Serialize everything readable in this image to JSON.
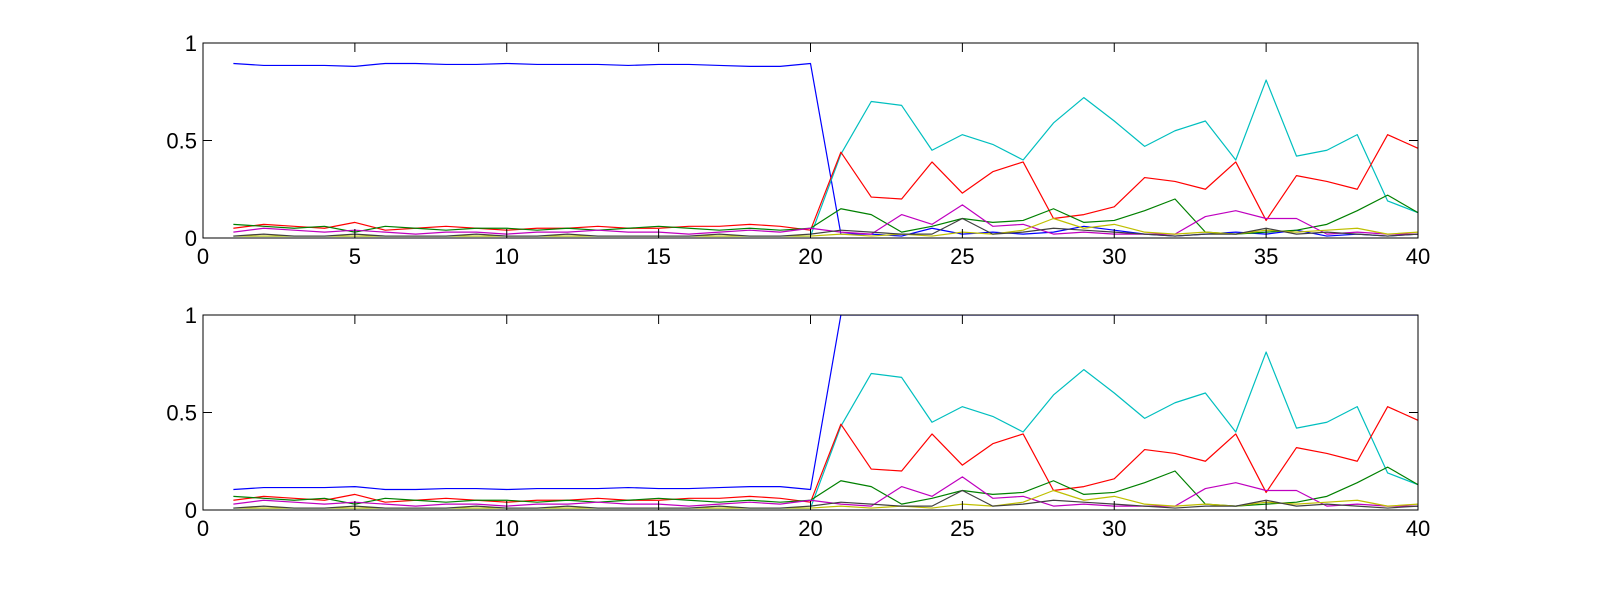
{
  "chart_data": [
    {
      "type": "line",
      "title": "",
      "xlabel": "",
      "ylabel": "",
      "xlim": [
        0,
        40
      ],
      "ylim": [
        0,
        1
      ],
      "xticks": [
        0,
        5,
        10,
        15,
        20,
        25,
        30,
        35,
        40
      ],
      "xtick_labels": [
        "0",
        "5",
        "10",
        "15",
        "20",
        "25",
        "30",
        "35",
        "40"
      ],
      "yticks": [
        0,
        0.5,
        1
      ],
      "ytick_labels": [
        "0",
        "0.5",
        "1"
      ],
      "grid": false,
      "legend": "none",
      "x": [
        1,
        2,
        3,
        4,
        5,
        6,
        7,
        8,
        9,
        10,
        11,
        12,
        13,
        14,
        15,
        16,
        17,
        18,
        19,
        20,
        21,
        22,
        23,
        24,
        25,
        26,
        27,
        28,
        29,
        30,
        31,
        32,
        33,
        34,
        35,
        36,
        37,
        38,
        39,
        40
      ],
      "series": [
        {
          "color": "#0000ff",
          "values": [
            0.895,
            0.885,
            0.885,
            0.885,
            0.88,
            0.895,
            0.895,
            0.89,
            0.89,
            0.895,
            0.89,
            0.89,
            0.89,
            0.885,
            0.89,
            0.89,
            0.885,
            0.88,
            0.88,
            0.895,
            0.02,
            0.02,
            0.01,
            0.05,
            0.02,
            0.03,
            0.02,
            0.03,
            0.06,
            0.04,
            0.02,
            0.01,
            0.02,
            0.03,
            0.02,
            0.04,
            0.01,
            0.02,
            0.01,
            0.02
          ]
        },
        {
          "color": "#00bfbf",
          "values": [
            0.01,
            0.01,
            0.01,
            0.01,
            0.01,
            0.01,
            0.01,
            0.01,
            0.01,
            0.01,
            0.01,
            0.01,
            0.01,
            0.01,
            0.01,
            0.01,
            0.01,
            0.01,
            0.01,
            0.01,
            0.43,
            0.7,
            0.68,
            0.45,
            0.53,
            0.48,
            0.4,
            0.59,
            0.72,
            0.6,
            0.47,
            0.55,
            0.6,
            0.4,
            0.81,
            0.42,
            0.45,
            0.53,
            0.19,
            0.13
          ]
        },
        {
          "color": "#ff0000",
          "values": [
            0.05,
            0.07,
            0.06,
            0.05,
            0.08,
            0.04,
            0.05,
            0.06,
            0.05,
            0.04,
            0.05,
            0.05,
            0.06,
            0.05,
            0.05,
            0.06,
            0.06,
            0.07,
            0.06,
            0.04,
            0.44,
            0.21,
            0.2,
            0.39,
            0.23,
            0.34,
            0.39,
            0.1,
            0.12,
            0.16,
            0.31,
            0.29,
            0.25,
            0.39,
            0.09,
            0.32,
            0.29,
            0.25,
            0.53,
            0.46
          ]
        },
        {
          "color": "#008000",
          "values": [
            0.07,
            0.06,
            0.05,
            0.06,
            0.03,
            0.06,
            0.05,
            0.04,
            0.05,
            0.05,
            0.04,
            0.05,
            0.04,
            0.05,
            0.06,
            0.05,
            0.04,
            0.05,
            0.04,
            0.05,
            0.15,
            0.12,
            0.03,
            0.06,
            0.1,
            0.08,
            0.09,
            0.15,
            0.08,
            0.09,
            0.14,
            0.2,
            0.03,
            0.02,
            0.03,
            0.04,
            0.07,
            0.14,
            0.22,
            0.13
          ]
        },
        {
          "color": "#bf00bf",
          "values": [
            0.03,
            0.05,
            0.04,
            0.03,
            0.04,
            0.03,
            0.02,
            0.03,
            0.03,
            0.02,
            0.03,
            0.03,
            0.04,
            0.03,
            0.03,
            0.02,
            0.03,
            0.04,
            0.03,
            0.05,
            0.03,
            0.02,
            0.12,
            0.07,
            0.17,
            0.06,
            0.07,
            0.02,
            0.03,
            0.02,
            0.02,
            0.02,
            0.11,
            0.14,
            0.1,
            0.1,
            0.02,
            0.03,
            0.02,
            0.02
          ]
        },
        {
          "color": "#bfbf00",
          "values": [
            0.01,
            0.01,
            0.01,
            0.01,
            0.01,
            0.01,
            0.01,
            0.01,
            0.01,
            0.01,
            0.01,
            0.01,
            0.01,
            0.01,
            0.01,
            0.01,
            0.01,
            0.01,
            0.01,
            0.01,
            0.02,
            0.01,
            0.02,
            0.01,
            0.03,
            0.02,
            0.04,
            0.1,
            0.05,
            0.07,
            0.03,
            0.02,
            0.03,
            0.02,
            0.04,
            0.03,
            0.04,
            0.05,
            0.02,
            0.03
          ]
        },
        {
          "color": "#404040",
          "values": [
            0.01,
            0.02,
            0.01,
            0.01,
            0.02,
            0.01,
            0.01,
            0.01,
            0.02,
            0.01,
            0.01,
            0.02,
            0.01,
            0.01,
            0.01,
            0.01,
            0.02,
            0.01,
            0.01,
            0.02,
            0.04,
            0.03,
            0.02,
            0.02,
            0.1,
            0.02,
            0.03,
            0.05,
            0.04,
            0.03,
            0.02,
            0.01,
            0.02,
            0.02,
            0.05,
            0.02,
            0.03,
            0.02,
            0.01,
            0.02
          ]
        }
      ]
    },
    {
      "type": "line",
      "title": "",
      "xlabel": "",
      "ylabel": "",
      "xlim": [
        0,
        40
      ],
      "ylim": [
        0,
        1
      ],
      "xticks": [
        0,
        5,
        10,
        15,
        20,
        25,
        30,
        35,
        40
      ],
      "xtick_labels": [
        "0",
        "5",
        "10",
        "15",
        "20",
        "25",
        "30",
        "35",
        "40"
      ],
      "yticks": [
        0,
        0.5,
        1
      ],
      "ytick_labels": [
        "0",
        "0.5",
        "1"
      ],
      "grid": false,
      "legend": "none",
      "x": [
        1,
        2,
        3,
        4,
        5,
        6,
        7,
        8,
        9,
        10,
        11,
        12,
        13,
        14,
        15,
        16,
        17,
        18,
        19,
        20,
        21,
        22,
        23,
        24,
        25,
        26,
        27,
        28,
        29,
        30,
        31,
        32,
        33,
        34,
        35,
        36,
        37,
        38,
        39,
        40
      ],
      "series": [
        {
          "color": "#0000ff",
          "values": [
            0.105,
            0.115,
            0.115,
            0.115,
            0.12,
            0.105,
            0.105,
            0.11,
            0.11,
            0.105,
            0.11,
            0.11,
            0.11,
            0.115,
            0.11,
            0.11,
            0.115,
            0.12,
            0.12,
            0.105,
            1,
            1,
            1,
            1,
            1,
            1,
            1,
            1,
            1,
            1,
            1,
            1,
            1,
            1,
            1,
            1,
            1,
            1,
            1,
            1
          ]
        },
        {
          "color": "#00bfbf",
          "values": [
            0.01,
            0.01,
            0.01,
            0.01,
            0.01,
            0.01,
            0.01,
            0.01,
            0.01,
            0.01,
            0.01,
            0.01,
            0.01,
            0.01,
            0.01,
            0.01,
            0.01,
            0.01,
            0.01,
            0.01,
            0.43,
            0.7,
            0.68,
            0.45,
            0.53,
            0.48,
            0.4,
            0.59,
            0.72,
            0.6,
            0.47,
            0.55,
            0.6,
            0.4,
            0.81,
            0.42,
            0.45,
            0.53,
            0.19,
            0.13
          ]
        },
        {
          "color": "#ff0000",
          "values": [
            0.05,
            0.07,
            0.06,
            0.05,
            0.08,
            0.04,
            0.05,
            0.06,
            0.05,
            0.04,
            0.05,
            0.05,
            0.06,
            0.05,
            0.05,
            0.06,
            0.06,
            0.07,
            0.06,
            0.04,
            0.44,
            0.21,
            0.2,
            0.39,
            0.23,
            0.34,
            0.39,
            0.1,
            0.12,
            0.16,
            0.31,
            0.29,
            0.25,
            0.39,
            0.09,
            0.32,
            0.29,
            0.25,
            0.53,
            0.46
          ]
        },
        {
          "color": "#008000",
          "values": [
            0.07,
            0.06,
            0.05,
            0.06,
            0.03,
            0.06,
            0.05,
            0.04,
            0.05,
            0.05,
            0.04,
            0.05,
            0.04,
            0.05,
            0.06,
            0.05,
            0.04,
            0.05,
            0.04,
            0.05,
            0.15,
            0.12,
            0.03,
            0.06,
            0.1,
            0.08,
            0.09,
            0.15,
            0.08,
            0.09,
            0.14,
            0.2,
            0.03,
            0.02,
            0.03,
            0.04,
            0.07,
            0.14,
            0.22,
            0.13
          ]
        },
        {
          "color": "#bf00bf",
          "values": [
            0.03,
            0.05,
            0.04,
            0.03,
            0.04,
            0.03,
            0.02,
            0.03,
            0.03,
            0.02,
            0.03,
            0.03,
            0.04,
            0.03,
            0.03,
            0.02,
            0.03,
            0.04,
            0.03,
            0.05,
            0.03,
            0.02,
            0.12,
            0.07,
            0.17,
            0.06,
            0.07,
            0.02,
            0.03,
            0.02,
            0.02,
            0.02,
            0.11,
            0.14,
            0.1,
            0.1,
            0.02,
            0.03,
            0.02,
            0.02
          ]
        },
        {
          "color": "#bfbf00",
          "values": [
            0.01,
            0.01,
            0.01,
            0.01,
            0.01,
            0.01,
            0.01,
            0.01,
            0.01,
            0.01,
            0.01,
            0.01,
            0.01,
            0.01,
            0.01,
            0.01,
            0.01,
            0.01,
            0.01,
            0.01,
            0.02,
            0.01,
            0.02,
            0.01,
            0.03,
            0.02,
            0.04,
            0.1,
            0.05,
            0.07,
            0.03,
            0.02,
            0.03,
            0.02,
            0.04,
            0.03,
            0.04,
            0.05,
            0.02,
            0.03
          ]
        },
        {
          "color": "#404040",
          "values": [
            0.01,
            0.02,
            0.01,
            0.01,
            0.02,
            0.01,
            0.01,
            0.01,
            0.02,
            0.01,
            0.01,
            0.02,
            0.01,
            0.01,
            0.01,
            0.01,
            0.02,
            0.01,
            0.01,
            0.02,
            0.04,
            0.03,
            0.02,
            0.02,
            0.1,
            0.02,
            0.03,
            0.05,
            0.04,
            0.03,
            0.02,
            0.01,
            0.02,
            0.02,
            0.05,
            0.02,
            0.03,
            0.02,
            0.01,
            0.02
          ]
        }
      ]
    }
  ]
}
